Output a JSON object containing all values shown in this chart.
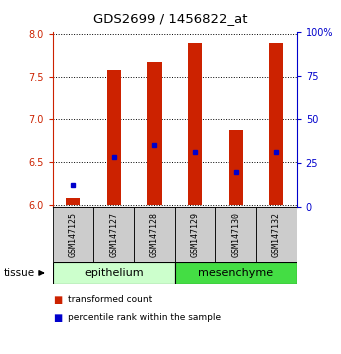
{
  "title": "GDS2699 / 1456822_at",
  "samples": [
    "GSM147125",
    "GSM147127",
    "GSM147128",
    "GSM147129",
    "GSM147130",
    "GSM147132"
  ],
  "bar_bottoms": [
    6.0,
    6.0,
    6.0,
    6.0,
    6.0,
    6.0
  ],
  "bar_tops": [
    6.08,
    7.58,
    7.68,
    7.9,
    6.88,
    7.9
  ],
  "percentile_values": [
    6.23,
    6.56,
    6.7,
    6.62,
    6.38,
    6.62
  ],
  "ylim_left": [
    5.97,
    8.03
  ],
  "ylim_right": [
    0,
    100
  ],
  "yticks_left": [
    6.0,
    6.5,
    7.0,
    7.5,
    8.0
  ],
  "yticks_right": [
    0,
    25,
    50,
    75,
    100
  ],
  "bar_color": "#cc2200",
  "percentile_color": "#0000cc",
  "tissue_groups": [
    {
      "label": "epithelium",
      "indices": [
        0,
        1,
        2
      ],
      "color": "#ccffcc"
    },
    {
      "label": "mesenchyme",
      "indices": [
        3,
        4,
        5
      ],
      "color": "#44dd44"
    }
  ],
  "legend_items": [
    {
      "label": "transformed count",
      "color": "#cc2200"
    },
    {
      "label": "percentile rank within the sample",
      "color": "#0000cc"
    }
  ],
  "tissue_label": "tissue",
  "left_tick_color": "#cc2200",
  "right_tick_color": "#0000cc",
  "sample_bg_color": "#cccccc"
}
